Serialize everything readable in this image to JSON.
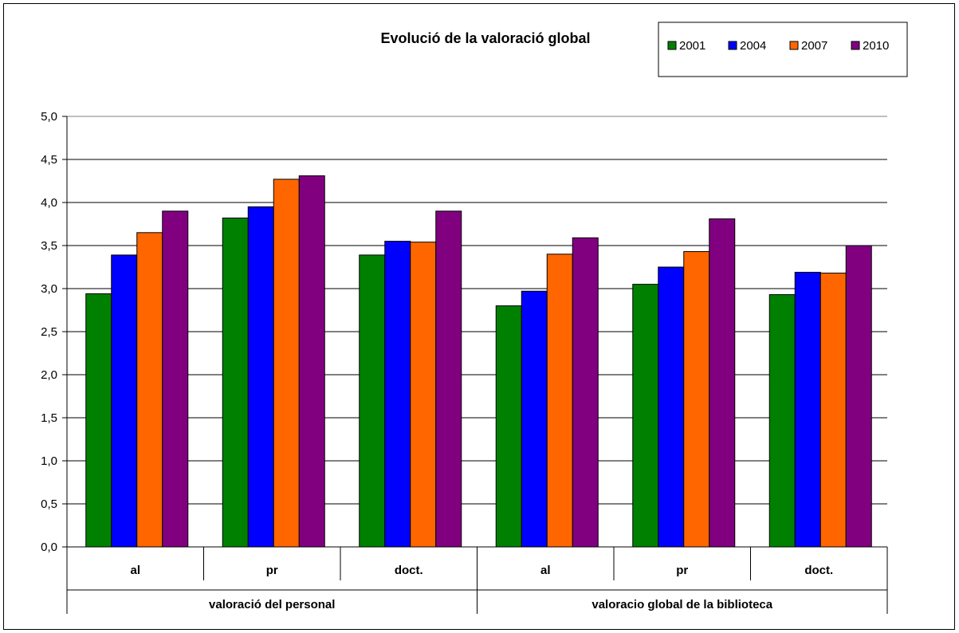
{
  "chart_data": {
    "type": "bar",
    "title": "Evolució de la valoració global",
    "xlabel": "",
    "ylabel": "",
    "ylim": [
      0,
      5
    ],
    "ytick_step": 0.5,
    "ytick_labels": [
      "0,0",
      "0,5",
      "1,0",
      "1,5",
      "2,0",
      "2,5",
      "3,0",
      "3,5",
      "4,0",
      "4,5",
      "5,0"
    ],
    "grid": true,
    "legend_position": "top-right",
    "groups": [
      {
        "label": "valoració del personal",
        "categories": [
          "al",
          "pr",
          "doct."
        ]
      },
      {
        "label": "valoracio global de la biblioteca",
        "categories": [
          "al",
          "pr",
          "doct."
        ]
      }
    ],
    "categories": [
      "al",
      "pr",
      "doct.",
      "al",
      "pr",
      "doct."
    ],
    "series": [
      {
        "name": "2001",
        "color": "#008000",
        "values": [
          2.94,
          3.82,
          3.39,
          2.8,
          3.05,
          2.93
        ]
      },
      {
        "name": "2004",
        "color": "#0000FF",
        "values": [
          3.39,
          3.95,
          3.55,
          2.97,
          3.25,
          3.19
        ]
      },
      {
        "name": "2007",
        "color": "#FF6600",
        "values": [
          3.65,
          4.27,
          3.54,
          3.4,
          3.43,
          3.18
        ]
      },
      {
        "name": "2010",
        "color": "#800080",
        "values": [
          3.9,
          4.31,
          3.9,
          3.59,
          3.81,
          3.5
        ]
      }
    ]
  }
}
